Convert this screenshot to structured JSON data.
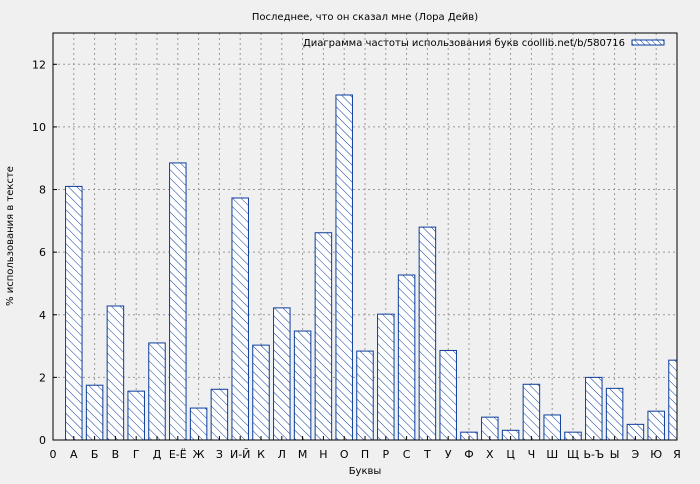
{
  "chart_data": {
    "type": "bar",
    "title": "Последнее, что он сказал мне (Лора Дейв)",
    "xlabel": "Буквы",
    "ylabel": "% использования в тексте",
    "legend": {
      "label": "Диаграмма частоты использования букв coollib.net/b/580716",
      "placement": "top-right"
    },
    "x_axis_origin_label": "0",
    "categories": [
      "А",
      "Б",
      "В",
      "Г",
      "Д",
      "Е-Ё",
      "Ж",
      "З",
      "И-Й",
      "К",
      "Л",
      "М",
      "Н",
      "О",
      "П",
      "Р",
      "С",
      "Т",
      "У",
      "Ф",
      "Х",
      "Ц",
      "Ч",
      "Ш",
      "Щ",
      "Ь-Ъ",
      "Ы",
      "Э",
      "Ю",
      "Я"
    ],
    "values": [
      8.1,
      1.75,
      4.28,
      1.56,
      3.1,
      8.85,
      1.02,
      1.62,
      7.73,
      3.03,
      4.22,
      3.48,
      6.62,
      11.02,
      2.84,
      4.02,
      5.27,
      6.8,
      2.86,
      0.25,
      0.73,
      0.31,
      1.78,
      0.8,
      0.25,
      2.0,
      1.65,
      0.5,
      0.92,
      2.55
    ],
    "ylim": [
      0,
      13
    ],
    "yticks": [
      0,
      2,
      4,
      6,
      8,
      10,
      12
    ],
    "grid": true,
    "colors": {
      "bar_stroke": "#0a3d9c",
      "bar_fill": "#ffffff",
      "grid": "#999999",
      "background": "#f0f0f0"
    }
  }
}
